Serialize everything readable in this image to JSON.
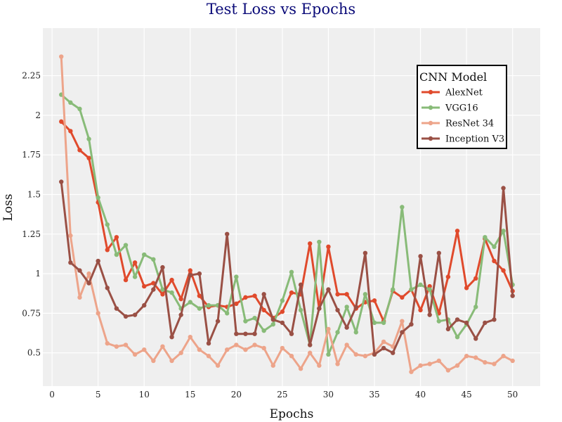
{
  "chart_data": {
    "type": "line",
    "title": "Test Loss vs Epochs",
    "xlabel": "Epochs",
    "ylabel": "Loss",
    "xlim": [
      -1,
      53
    ],
    "ylim": [
      0.29,
      2.55
    ],
    "xticks": [
      0,
      5,
      10,
      15,
      20,
      25,
      30,
      35,
      40,
      45,
      50
    ],
    "yticks": [
      0.5,
      0.75,
      1,
      1.25,
      1.5,
      1.75,
      2,
      2.25
    ],
    "ytick_labels": [
      "0.5",
      "0.75",
      "1",
      "1.25",
      "1.5",
      "1.75",
      "2",
      "2.25"
    ],
    "grid": true,
    "legend_title": "CNN Model",
    "legend_position": "top-right",
    "x": [
      1,
      2,
      3,
      4,
      5,
      6,
      7,
      8,
      9,
      10,
      11,
      12,
      13,
      14,
      15,
      16,
      17,
      18,
      19,
      20,
      21,
      22,
      23,
      24,
      25,
      26,
      27,
      28,
      29,
      30,
      31,
      32,
      33,
      34,
      35,
      36,
      37,
      38,
      39,
      40,
      41,
      42,
      43,
      44,
      45,
      46,
      47,
      48,
      49,
      50
    ],
    "series": [
      {
        "name": "AlexNet",
        "color": "#e04a2c",
        "values": [
          1.96,
          1.9,
          1.78,
          1.73,
          1.45,
          1.15,
          1.23,
          0.96,
          1.07,
          0.92,
          0.94,
          0.87,
          0.96,
          0.84,
          1.02,
          0.86,
          0.79,
          0.8,
          0.79,
          0.81,
          0.85,
          0.86,
          0.77,
          0.72,
          0.76,
          0.88,
          0.87,
          1.19,
          0.78,
          1.17,
          0.87,
          0.87,
          0.78,
          0.82,
          0.83,
          0.7,
          0.89,
          0.85,
          0.9,
          0.77,
          0.92,
          0.75,
          0.98,
          1.27,
          0.91,
          0.97,
          1.22,
          1.08,
          1.02,
          0.89
        ]
      },
      {
        "name": "VGG16",
        "color": "#88bb78",
        "values": [
          2.13,
          2.08,
          2.04,
          1.85,
          1.48,
          1.31,
          1.12,
          1.18,
          0.98,
          1.12,
          1.09,
          0.9,
          0.88,
          0.78,
          0.82,
          0.78,
          0.8,
          0.8,
          0.75,
          0.98,
          0.7,
          0.72,
          0.64,
          0.68,
          0.83,
          1.01,
          0.77,
          0.55,
          1.2,
          0.49,
          0.63,
          0.79,
          0.63,
          0.87,
          0.69,
          0.69,
          0.9,
          1.42,
          0.9,
          0.93,
          0.9,
          0.7,
          0.71,
          0.6,
          0.68,
          0.79,
          1.23,
          1.17,
          1.27,
          0.93
        ]
      },
      {
        "name": "ResNet 34",
        "color": "#eda48a",
        "values": [
          2.37,
          1.24,
          0.85,
          1.0,
          0.75,
          0.56,
          0.54,
          0.55,
          0.49,
          0.52,
          0.45,
          0.54,
          0.45,
          0.5,
          0.6,
          0.52,
          0.48,
          0.42,
          0.52,
          0.55,
          0.52,
          0.55,
          0.53,
          0.42,
          0.53,
          0.48,
          0.4,
          0.5,
          0.42,
          0.65,
          0.43,
          0.55,
          0.49,
          0.48,
          0.5,
          0.57,
          0.54,
          0.7,
          0.38,
          0.42,
          0.43,
          0.45,
          0.39,
          0.42,
          0.48,
          0.47,
          0.44,
          0.43,
          0.48,
          0.45
        ]
      },
      {
        "name": "Inception V3",
        "color": "#9a5045",
        "values": [
          1.58,
          1.07,
          1.02,
          0.94,
          1.08,
          0.91,
          0.78,
          0.73,
          0.74,
          0.8,
          0.9,
          1.04,
          0.6,
          0.74,
          0.99,
          1.0,
          0.56,
          0.7,
          1.25,
          0.62,
          0.62,
          0.62,
          0.87,
          0.71,
          0.69,
          0.62,
          0.93,
          0.55,
          0.78,
          0.9,
          0.77,
          0.66,
          0.79,
          1.13,
          0.49,
          0.53,
          0.5,
          0.63,
          0.68,
          1.11,
          0.74,
          1.13,
          0.65,
          0.71,
          0.69,
          0.59,
          0.69,
          0.71,
          1.54,
          0.86
        ]
      }
    ]
  }
}
